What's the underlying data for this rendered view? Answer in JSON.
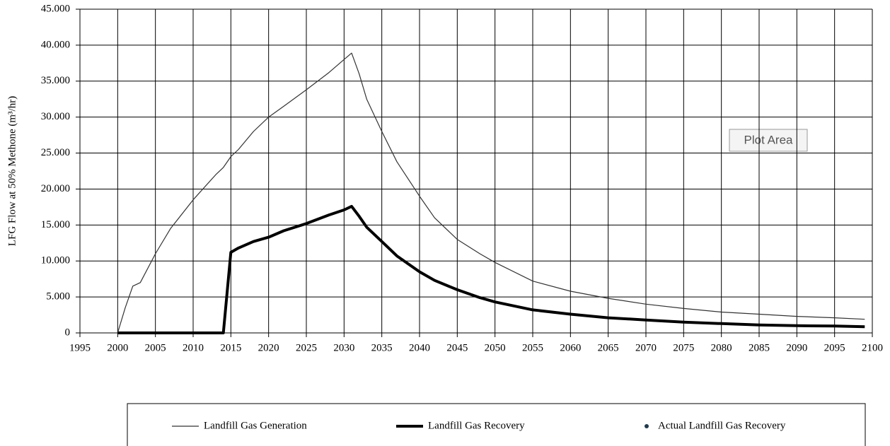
{
  "chart_data": {
    "type": "line",
    "y_label": "LFG Flow at 50% Methone (m³/hr)",
    "annotation": "Plot Area",
    "x": [
      2000,
      2001,
      2002,
      2003,
      2005,
      2007,
      2010,
      2013,
      2014,
      2015,
      2016,
      2018,
      2020,
      2022,
      2025,
      2028,
      2030,
      2031,
      2032,
      2033,
      2035,
      2037,
      2040,
      2042,
      2045,
      2048,
      2050,
      2055,
      2060,
      2065,
      2070,
      2075,
      2080,
      2085,
      2090,
      2095,
      2099
    ],
    "series": [
      {
        "name": "Landfill Gas Generation",
        "color": "#333333",
        "values": [
          0,
          3500,
          6500,
          7000,
          11000,
          14500,
          18500,
          22000,
          23000,
          24500,
          25500,
          28000,
          30000,
          31500,
          33800,
          36200,
          38000,
          38900,
          36000,
          32500,
          28000,
          23800,
          19000,
          16000,
          13000,
          11000,
          9800,
          7200,
          5800,
          4800,
          4000,
          3400,
          2900,
          2600,
          2300,
          2100,
          1900
        ]
      },
      {
        "name": "Landfill Gas Recovery",
        "color": "#000000",
        "values": [
          0,
          0,
          0,
          0,
          0,
          0,
          0,
          0,
          0,
          11200,
          11800,
          12700,
          13300,
          14200,
          15200,
          16400,
          17100,
          17600,
          16200,
          14700,
          12700,
          10700,
          8500,
          7300,
          6000,
          4900,
          4300,
          3200,
          2600,
          2100,
          1800,
          1500,
          1300,
          1100,
          1000,
          950,
          850
        ]
      },
      {
        "name": "Actual Landfill Gas Recovery",
        "color": "#1f3a4d",
        "values": [
          null,
          null,
          null,
          null,
          null,
          null,
          null,
          null,
          null,
          null,
          null,
          null,
          null,
          null,
          null,
          null,
          null,
          null,
          null,
          null,
          null,
          null,
          null,
          null,
          null,
          null,
          null,
          null,
          null,
          null,
          null,
          null,
          null,
          null,
          null,
          null,
          null
        ]
      }
    ],
    "xlim": [
      1995,
      2100
    ],
    "xticks": [
      1995,
      2000,
      2005,
      2010,
      2015,
      2020,
      2025,
      2030,
      2035,
      2040,
      2045,
      2050,
      2055,
      2060,
      2065,
      2070,
      2075,
      2080,
      2085,
      2090,
      2095,
      2100
    ],
    "ylim": [
      0,
      45000
    ],
    "yticks": [
      0,
      {
        "value": 5000,
        "label": "5.000"
      },
      {
        "value": 10000,
        "label": "10.000"
      },
      {
        "value": 15000,
        "label": "15.000"
      },
      {
        "value": 20000,
        "label": "20.000"
      },
      {
        "value": 25000,
        "label": "25.000"
      },
      {
        "value": 30000,
        "label": "30.000"
      },
      {
        "value": 35000,
        "label": "35.000"
      },
      {
        "value": 40000,
        "label": "40.000"
      },
      {
        "value": 45000,
        "label": "45.000"
      }
    ],
    "grid": true,
    "legend": "bottom"
  }
}
